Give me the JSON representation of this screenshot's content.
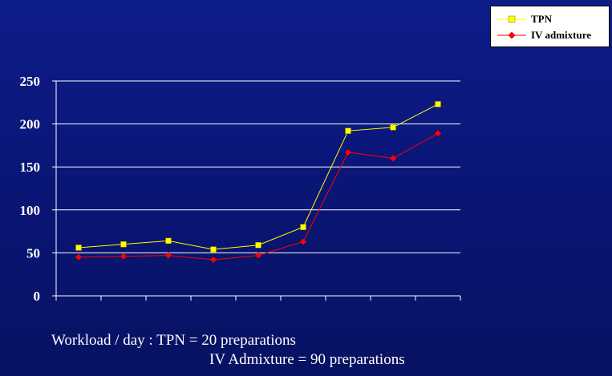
{
  "chart_data": {
    "type": "line",
    "x": [
      1,
      2,
      3,
      4,
      5,
      6,
      7,
      8,
      9
    ],
    "ylim": [
      0,
      250
    ],
    "yticks": [
      0,
      50,
      100,
      150,
      200,
      250
    ],
    "grid": true,
    "legend_position": "top-right",
    "series": [
      {
        "name": "TPN",
        "color": "#ffff00",
        "marker": "square",
        "values": [
          56,
          60,
          64,
          54,
          59,
          80,
          192,
          196,
          223
        ]
      },
      {
        "name": "IV admixture",
        "color": "#ff0000",
        "marker": "diamond",
        "values": [
          45,
          46,
          47,
          42,
          47,
          63,
          167,
          160,
          189
        ]
      }
    ]
  },
  "caption": {
    "line1": "Workload / day : TPN = 20 preparations",
    "line2": "IV Admixture = 90 preparations"
  }
}
